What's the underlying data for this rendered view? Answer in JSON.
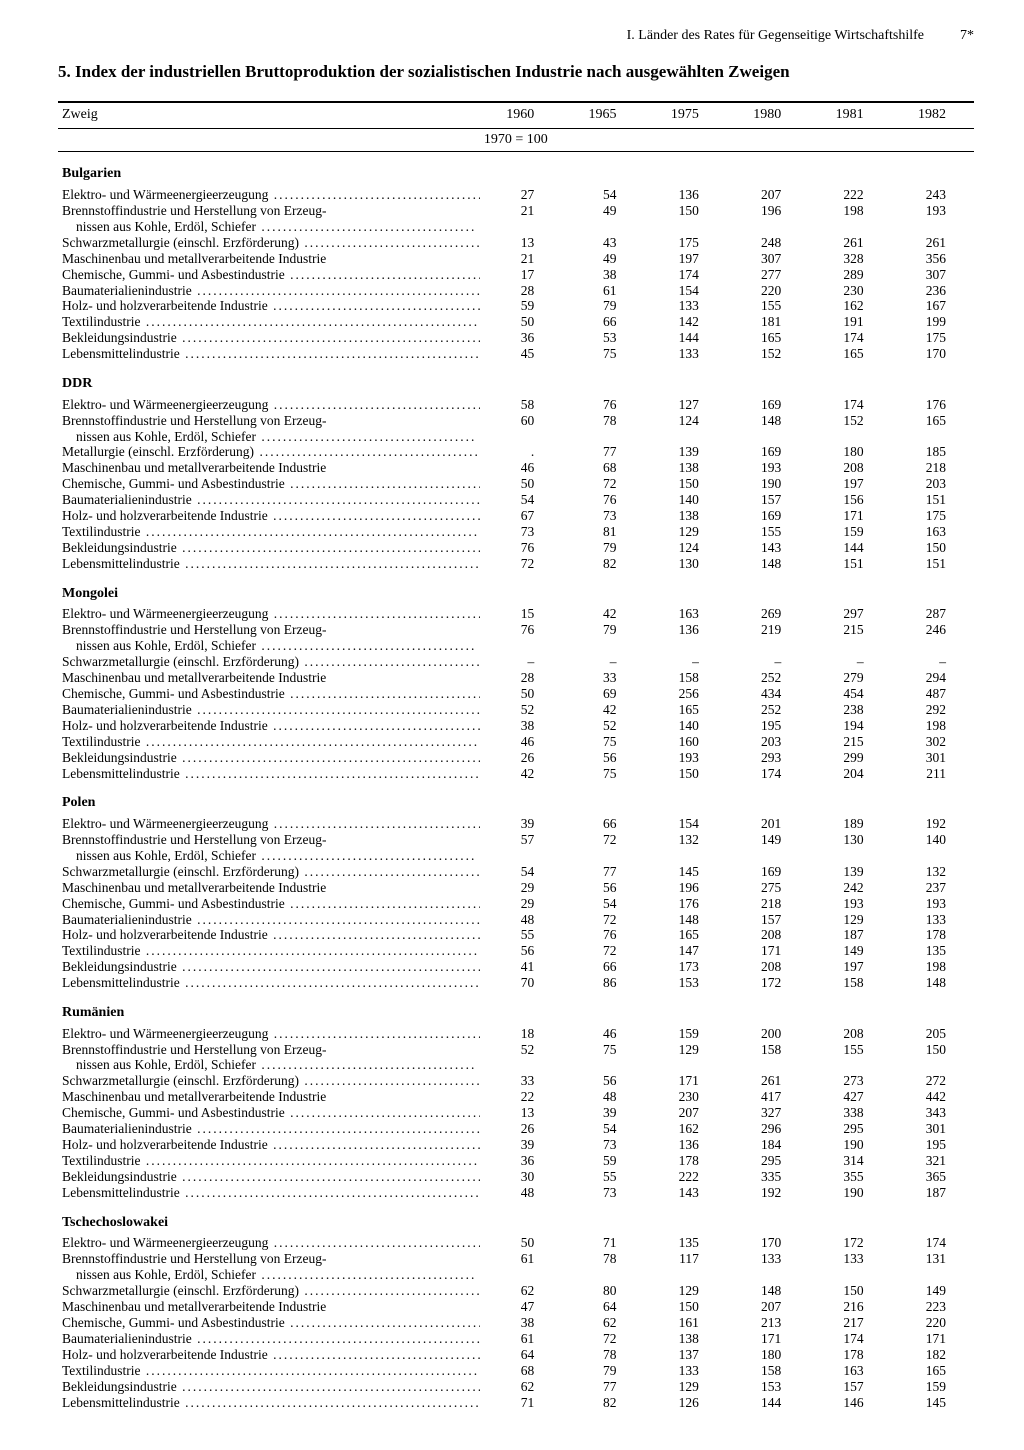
{
  "header": {
    "section": "I. Länder des Rates für Gegenseitige Wirtschaftshilfe",
    "pageNumber": "7*"
  },
  "title": "5. Index der industriellen Bruttoproduktion der sozialistischen Industrie nach ausgewählten Zweigen",
  "columns": {
    "zweig": "Zweig",
    "years": [
      "1960",
      "1965",
      "1975",
      "1980",
      "1981",
      "1982"
    ],
    "base": "1970 = 100"
  },
  "rowLabels": {
    "elektro": "Elektro- und Wärmeenergieerzeugung",
    "brennstoff1": "Brennstoffindustrie und Herstellung von Erzeug-",
    "brennstoff2": "nissen aus Kohle, Erdöl, Schiefer",
    "schwarz": "Schwarzmetallurgie (einschl. Erzförderung)",
    "metall": "Metallurgie (einschl. Erzförderung)",
    "maschinen": "Maschinenbau und metallverarbeitende Industrie",
    "chemie": "Chemische, Gummi- und Asbestindustrie",
    "baumat": "Baumaterialienindustrie",
    "holz": "Holz- und holzverarbeitende Industrie",
    "textil": "Textilindustrie",
    "bekleid": "Bekleidungsindustrie",
    "lebens": "Lebensmittelindustrie"
  },
  "countries": [
    {
      "name": "Bulgarien",
      "rows": [
        {
          "k": "elektro",
          "v": [
            "27",
            "54",
            "136",
            "207",
            "222",
            "243"
          ]
        },
        {
          "k": "brennstoff",
          "v": [
            "21",
            "49",
            "150",
            "196",
            "198",
            "193"
          ]
        },
        {
          "k": "schwarz",
          "v": [
            "13",
            "43",
            "175",
            "248",
            "261",
            "261"
          ]
        },
        {
          "k": "maschinen",
          "v": [
            "21",
            "49",
            "197",
            "307",
            "328",
            "356"
          ],
          "nodots": true
        },
        {
          "k": "chemie",
          "v": [
            "17",
            "38",
            "174",
            "277",
            "289",
            "307"
          ]
        },
        {
          "k": "baumat",
          "v": [
            "28",
            "61",
            "154",
            "220",
            "230",
            "236"
          ]
        },
        {
          "k": "holz",
          "v": [
            "59",
            "79",
            "133",
            "155",
            "162",
            "167"
          ]
        },
        {
          "k": "textil",
          "v": [
            "50",
            "66",
            "142",
            "181",
            "191",
            "199"
          ]
        },
        {
          "k": "bekleid",
          "v": [
            "36",
            "53",
            "144",
            "165",
            "174",
            "175"
          ]
        },
        {
          "k": "lebens",
          "v": [
            "45",
            "75",
            "133",
            "152",
            "165",
            "170"
          ]
        }
      ]
    },
    {
      "name": "DDR",
      "rows": [
        {
          "k": "elektro",
          "v": [
            "58",
            "76",
            "127",
            "169",
            "174",
            "176"
          ]
        },
        {
          "k": "brennstoff",
          "v": [
            "60",
            "78",
            "124",
            "148",
            "152",
            "165"
          ]
        },
        {
          "k": "metall",
          "v": [
            ".",
            "77",
            "139",
            "169",
            "180",
            "185"
          ]
        },
        {
          "k": "maschinen",
          "v": [
            "46",
            "68",
            "138",
            "193",
            "208",
            "218"
          ],
          "nodots": true
        },
        {
          "k": "chemie",
          "v": [
            "50",
            "72",
            "150",
            "190",
            "197",
            "203"
          ]
        },
        {
          "k": "baumat",
          "v": [
            "54",
            "76",
            "140",
            "157",
            "156",
            "151"
          ]
        },
        {
          "k": "holz",
          "v": [
            "67",
            "73",
            "138",
            "169",
            "171",
            "175"
          ]
        },
        {
          "k": "textil",
          "v": [
            "73",
            "81",
            "129",
            "155",
            "159",
            "163"
          ]
        },
        {
          "k": "bekleid",
          "v": [
            "76",
            "79",
            "124",
            "143",
            "144",
            "150"
          ]
        },
        {
          "k": "lebens",
          "v": [
            "72",
            "82",
            "130",
            "148",
            "151",
            "151"
          ]
        }
      ]
    },
    {
      "name": "Mongolei",
      "rows": [
        {
          "k": "elektro",
          "v": [
            "15",
            "42",
            "163",
            "269",
            "297",
            "287"
          ]
        },
        {
          "k": "brennstoff",
          "v": [
            "76",
            "79",
            "136",
            "219",
            "215",
            "246"
          ]
        },
        {
          "k": "schwarz",
          "v": [
            "–",
            "–",
            "–",
            "–",
            "–",
            "–"
          ]
        },
        {
          "k": "maschinen",
          "v": [
            "28",
            "33",
            "158",
            "252",
            "279",
            "294"
          ],
          "nodots": true
        },
        {
          "k": "chemie",
          "v": [
            "50",
            "69",
            "256",
            "434",
            "454",
            "487"
          ]
        },
        {
          "k": "baumat",
          "v": [
            "52",
            "42",
            "165",
            "252",
            "238",
            "292"
          ]
        },
        {
          "k": "holz",
          "v": [
            "38",
            "52",
            "140",
            "195",
            "194",
            "198"
          ]
        },
        {
          "k": "textil",
          "v": [
            "46",
            "75",
            "160",
            "203",
            "215",
            "302"
          ]
        },
        {
          "k": "bekleid",
          "v": [
            "26",
            "56",
            "193",
            "293",
            "299",
            "301"
          ]
        },
        {
          "k": "lebens",
          "v": [
            "42",
            "75",
            "150",
            "174",
            "204",
            "211"
          ]
        }
      ]
    },
    {
      "name": "Polen",
      "rows": [
        {
          "k": "elektro",
          "v": [
            "39",
            "66",
            "154",
            "201",
            "189",
            "192"
          ]
        },
        {
          "k": "brennstoff",
          "v": [
            "57",
            "72",
            "132",
            "149",
            "130",
            "140"
          ]
        },
        {
          "k": "schwarz",
          "v": [
            "54",
            "77",
            "145",
            "169",
            "139",
            "132"
          ]
        },
        {
          "k": "maschinen",
          "v": [
            "29",
            "56",
            "196",
            "275",
            "242",
            "237"
          ],
          "nodots": true
        },
        {
          "k": "chemie",
          "v": [
            "29",
            "54",
            "176",
            "218",
            "193",
            "193"
          ]
        },
        {
          "k": "baumat",
          "v": [
            "48",
            "72",
            "148",
            "157",
            "129",
            "133"
          ]
        },
        {
          "k": "holz",
          "v": [
            "55",
            "76",
            "165",
            "208",
            "187",
            "178"
          ]
        },
        {
          "k": "textil",
          "v": [
            "56",
            "72",
            "147",
            "171",
            "149",
            "135"
          ]
        },
        {
          "k": "bekleid",
          "v": [
            "41",
            "66",
            "173",
            "208",
            "197",
            "198"
          ]
        },
        {
          "k": "lebens",
          "v": [
            "70",
            "86",
            "153",
            "172",
            "158",
            "148"
          ]
        }
      ]
    },
    {
      "name": "Rumänien",
      "rows": [
        {
          "k": "elektro",
          "v": [
            "18",
            "46",
            "159",
            "200",
            "208",
            "205"
          ]
        },
        {
          "k": "brennstoff",
          "v": [
            "52",
            "75",
            "129",
            "158",
            "155",
            "150"
          ]
        },
        {
          "k": "schwarz",
          "v": [
            "33",
            "56",
            "171",
            "261",
            "273",
            "272"
          ]
        },
        {
          "k": "maschinen",
          "v": [
            "22",
            "48",
            "230",
            "417",
            "427",
            "442"
          ],
          "nodots": true
        },
        {
          "k": "chemie",
          "v": [
            "13",
            "39",
            "207",
            "327",
            "338",
            "343"
          ]
        },
        {
          "k": "baumat",
          "v": [
            "26",
            "54",
            "162",
            "296",
            "295",
            "301"
          ]
        },
        {
          "k": "holz",
          "v": [
            "39",
            "73",
            "136",
            "184",
            "190",
            "195"
          ]
        },
        {
          "k": "textil",
          "v": [
            "36",
            "59",
            "178",
            "295",
            "314",
            "321"
          ]
        },
        {
          "k": "bekleid",
          "v": [
            "30",
            "55",
            "222",
            "335",
            "355",
            "365"
          ]
        },
        {
          "k": "lebens",
          "v": [
            "48",
            "73",
            "143",
            "192",
            "190",
            "187"
          ]
        }
      ]
    },
    {
      "name": "Tschechoslowakei",
      "rows": [
        {
          "k": "elektro",
          "v": [
            "50",
            "71",
            "135",
            "170",
            "172",
            "174"
          ]
        },
        {
          "k": "brennstoff",
          "v": [
            "61",
            "78",
            "117",
            "133",
            "133",
            "131"
          ]
        },
        {
          "k": "schwarz",
          "v": [
            "62",
            "80",
            "129",
            "148",
            "150",
            "149"
          ]
        },
        {
          "k": "maschinen",
          "v": [
            "47",
            "64",
            "150",
            "207",
            "216",
            "223"
          ],
          "nodots": true
        },
        {
          "k": "chemie",
          "v": [
            "38",
            "62",
            "161",
            "213",
            "217",
            "220"
          ]
        },
        {
          "k": "baumat",
          "v": [
            "61",
            "72",
            "138",
            "171",
            "174",
            "171"
          ]
        },
        {
          "k": "holz",
          "v": [
            "64",
            "78",
            "137",
            "180",
            "178",
            "182"
          ]
        },
        {
          "k": "textil",
          "v": [
            "68",
            "79",
            "133",
            "158",
            "163",
            "165"
          ]
        },
        {
          "k": "bekleid",
          "v": [
            "62",
            "77",
            "129",
            "153",
            "157",
            "159"
          ]
        },
        {
          "k": "lebens",
          "v": [
            "71",
            "82",
            "126",
            "144",
            "146",
            "145"
          ]
        }
      ]
    }
  ]
}
